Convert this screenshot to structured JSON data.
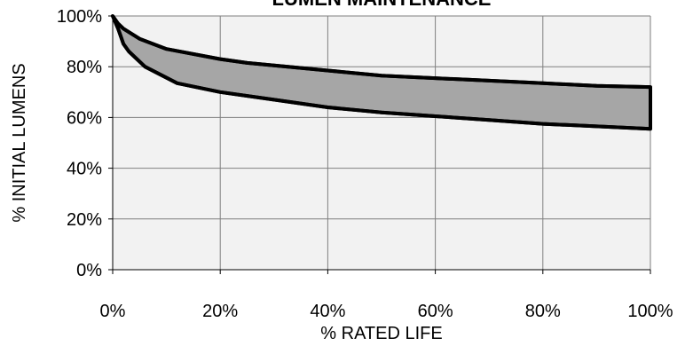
{
  "chart_data": {
    "type": "area",
    "title": "LUMEN MAINTENANCE",
    "xlabel": "% RATED LIFE",
    "ylabel": "% INITIAL LUMENS",
    "xlim": [
      0,
      100
    ],
    "ylim": [
      0,
      100
    ],
    "x_ticks": [
      "0%",
      "20%",
      "40%",
      "60%",
      "80%",
      "100%"
    ],
    "y_ticks": [
      "0%",
      "20%",
      "40%",
      "60%",
      "80%",
      "100%"
    ],
    "grid": true,
    "legend": "none",
    "fill_color": "#a6a6a6",
    "plot_background": "#f2f2f2",
    "line_color": "#000000",
    "series": [
      {
        "x": [
          0,
          1,
          2,
          5,
          10,
          20,
          25,
          30,
          40,
          50,
          60,
          70,
          80,
          90,
          100
        ],
        "values": [
          100,
          97,
          95,
          91,
          87,
          83,
          81.5,
          80.5,
          78.5,
          76.5,
          75.5,
          74.5,
          73.5,
          72.5,
          72
        ]
      },
      {
        "x": [
          0,
          1,
          2,
          3,
          6,
          12,
          20,
          30,
          40,
          50,
          60,
          70,
          80,
          90,
          100
        ],
        "values": [
          100,
          95,
          89,
          86,
          80,
          73.5,
          70,
          67,
          64,
          62,
          60.5,
          59,
          57.5,
          56.5,
          55.5
        ]
      }
    ]
  }
}
